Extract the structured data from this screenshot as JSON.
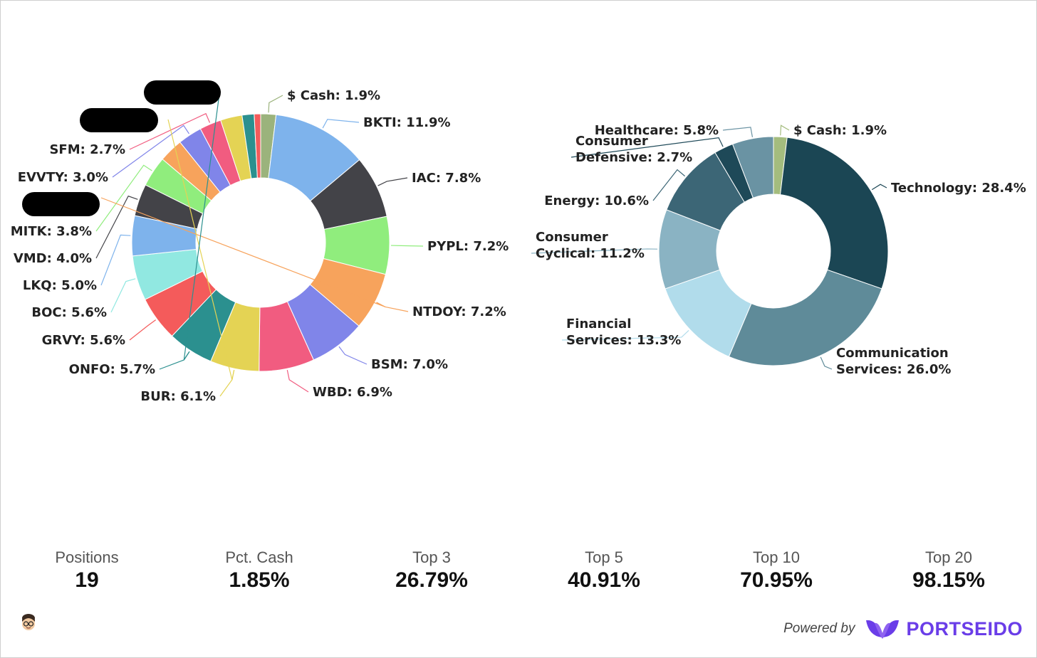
{
  "chart_data": [
    {
      "type": "pie",
      "variant": "donut",
      "slices": [
        {
          "label": "$ Cash",
          "value": 1.9,
          "text": "$ Cash: 1.9%",
          "color": "#9BB37C"
        },
        {
          "label": "BKTI",
          "value": 11.9,
          "text": "BKTI: 11.9%",
          "color": "#7EB3EC"
        },
        {
          "label": "IAC",
          "value": 7.8,
          "text": "IAC: 7.8%",
          "color": "#434348"
        },
        {
          "label": "PYPL",
          "value": 7.2,
          "text": "PYPL: 7.2%",
          "color": "#90ED7D"
        },
        {
          "label": "NTDOY",
          "value": 7.2,
          "text": "NTDOY: 7.2%",
          "color": "#F7A35C"
        },
        {
          "label": "BSM",
          "value": 7.0,
          "text": "BSM: 7.0%",
          "color": "#8085E9"
        },
        {
          "label": "WBD",
          "value": 6.9,
          "text": "WBD: 6.9%",
          "color": "#F15C80"
        },
        {
          "label": "BUR",
          "value": 6.1,
          "text": "BUR: 6.1%",
          "color": "#E4D354"
        },
        {
          "label": "ONFO",
          "value": 5.7,
          "text": "ONFO: 5.7%",
          "color": "#2B908F"
        },
        {
          "label": "GRVY",
          "value": 5.6,
          "text": "GRVY: 5.6%",
          "color": "#F45B5B"
        },
        {
          "label": "BOC",
          "value": 5.6,
          "text": "BOC: 5.6%",
          "color": "#91E8E1"
        },
        {
          "label": "LKQ",
          "value": 5.0,
          "text": "LKQ: 5.0%",
          "color": "#7EB3EC"
        },
        {
          "label": "VMD",
          "value": 4.0,
          "text": "VMD: 4.0%",
          "color": "#434348"
        },
        {
          "label": "MITK",
          "value": 3.8,
          "text": "MITK: 3.8%",
          "color": "#90ED7D"
        },
        {
          "label": "",
          "value": 3.0,
          "text": "",
          "color": "#F7A35C",
          "redacted": true
        },
        {
          "label": "EVVTY",
          "value": 3.0,
          "text": "EVVTY: 3.0%",
          "color": "#8085E9"
        },
        {
          "label": "SFM",
          "value": 2.7,
          "text": "SFM: 2.7%",
          "color": "#F15C80"
        },
        {
          "label": "",
          "value": 2.7,
          "text": "",
          "color": "#E4D354",
          "redacted": true
        },
        {
          "label": "",
          "value": 1.5,
          "text": "",
          "color": "#2B908F",
          "redacted": true
        },
        {
          "label": "",
          "value": 0.8,
          "text": "",
          "color": "#F45B5B"
        }
      ]
    },
    {
      "type": "pie",
      "variant": "donut",
      "slices": [
        {
          "label": "$ Cash",
          "value": 1.9,
          "text": [
            "$ Cash: 1.9%"
          ],
          "color": "#A4BC7E"
        },
        {
          "label": "Technology",
          "value": 28.4,
          "text": [
            "Technology: 28.4%"
          ],
          "color": "#1B4654"
        },
        {
          "label": "Communication Services",
          "value": 26.0,
          "text": [
            "Communication",
            "Services: 26.0%"
          ],
          "color": "#5F8B99"
        },
        {
          "label": "Financial Services",
          "value": 13.3,
          "text": [
            "Financial",
            "Services: 13.3%"
          ],
          "color": "#B1DCEB"
        },
        {
          "label": "Consumer Cyclical",
          "value": 11.2,
          "text": [
            "Consumer",
            "Cyclical: 11.2%"
          ],
          "color": "#8AB3C3"
        },
        {
          "label": "Energy",
          "value": 10.6,
          "text": [
            "Energy: 10.6%"
          ],
          "color": "#3C6676"
        },
        {
          "label": "Consumer Defensive",
          "value": 2.7,
          "text": [
            "Consumer",
            "Defensive: 2.7%"
          ],
          "color": "#1E4958"
        },
        {
          "label": "Healthcare",
          "value": 5.8,
          "text": [
            "Healthcare: 5.8%"
          ],
          "color": "#6A93A3"
        }
      ]
    }
  ],
  "stats": [
    {
      "label": "Positions",
      "value": "19"
    },
    {
      "label": "Pct. Cash",
      "value": "1.85%"
    },
    {
      "label": "Top 3",
      "value": "26.79%"
    },
    {
      "label": "Top 5",
      "value": "40.91%"
    },
    {
      "label": "Top 10",
      "value": "70.95%"
    },
    {
      "label": "Top 20",
      "value": "98.15%"
    }
  ],
  "footer": {
    "powered_by": "Powered by",
    "brand": "PORTSEIDO",
    "brand_color": "#6A3DE8",
    "logo_icon": "leaf-logo-icon",
    "avatar_icon": "user-avatar-icon"
  }
}
